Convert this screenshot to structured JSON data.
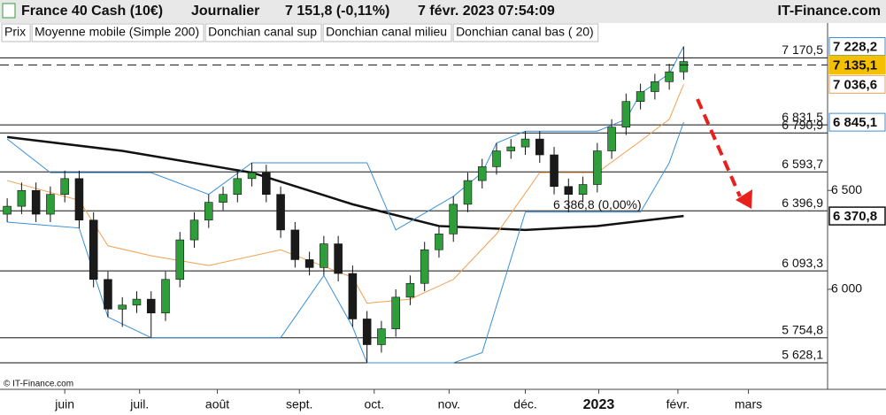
{
  "header": {
    "title": "France 40 Cash (10€)",
    "period": "Journalier",
    "price": "7 151,8 (-0,11%)",
    "datetime": "7 févr. 2023 07:54:09",
    "site": "IT-Finance.com"
  },
  "chart_data": {
    "type": "candlestick",
    "price_name": "Prix",
    "open": [
      6380,
      6420,
      6500,
      6380,
      6480,
      6560,
      6350,
      6050,
      5900,
      5920,
      5950,
      5880,
      6050,
      6250,
      6350,
      6440,
      6480,
      6560,
      6590,
      6480,
      6300,
      6150,
      6110,
      6230,
      6080,
      5850,
      5720,
      5800,
      5960,
      6030,
      6200,
      6280,
      6430,
      6550,
      6620,
      6700,
      6720,
      6760,
      6680,
      6520,
      6480,
      6530,
      6700,
      6820,
      6950,
      7000,
      7050,
      7100
    ],
    "high": [
      6460,
      6540,
      6540,
      6520,
      6600,
      6600,
      6390,
      6090,
      5960,
      5990,
      5990,
      6090,
      6290,
      6390,
      6480,
      6520,
      6600,
      6640,
      6630,
      6520,
      6340,
      6190,
      6270,
      6270,
      6120,
      5890,
      5840,
      6000,
      6070,
      6240,
      6320,
      6470,
      6590,
      6660,
      6740,
      6760,
      6800,
      6800,
      6720,
      6560,
      6570,
      6740,
      6860,
      6990,
      7040,
      7090,
      7140,
      7228.2
    ],
    "low": [
      6340,
      6380,
      6340,
      6340,
      6440,
      6310,
      6010,
      5860,
      5810,
      5880,
      5755,
      5840,
      6010,
      6210,
      6310,
      6400,
      6440,
      6520,
      6440,
      6260,
      6110,
      6070,
      6070,
      6040,
      5810,
      5628,
      5680,
      5760,
      5920,
      5990,
      6160,
      6240,
      6390,
      6510,
      6580,
      6660,
      6680,
      6640,
      6480,
      6390,
      6440,
      6490,
      6660,
      6780,
      6910,
      6960,
      7010,
      7060
    ],
    "close": [
      6420,
      6500,
      6380,
      6480,
      6560,
      6350,
      6050,
      5900,
      5920,
      5950,
      5880,
      6050,
      6250,
      6350,
      6440,
      6480,
      6560,
      6590,
      6480,
      6300,
      6150,
      6110,
      6230,
      6080,
      5850,
      5720,
      5800,
      5960,
      6030,
      6200,
      6280,
      6430,
      6550,
      6620,
      6700,
      6720,
      6760,
      6680,
      6520,
      6480,
      6530,
      6700,
      6820,
      6950,
      7000,
      7050,
      7100,
      7151.8
    ],
    "up_color": "#2e9e3a",
    "down_color": "#1a1a1a",
    "series": [
      {
        "name": "Moyenne mobile (Simple 200)",
        "color": "#111111",
        "width": 2.5,
        "x": [
          0,
          8,
          17,
          24,
          30,
          36,
          41,
          47
        ],
        "values": [
          6770,
          6700,
          6590,
          6430,
          6320,
          6300,
          6320,
          6370.8
        ]
      },
      {
        "name": "Donchian canal sup",
        "color": "#3a8fd6",
        "width": 1,
        "x": [
          0,
          3,
          10,
          14,
          17,
          21,
          25,
          27,
          31,
          33,
          34,
          36,
          41,
          43,
          44,
          45,
          46,
          47
        ],
        "values": [
          6760,
          6590,
          6590,
          6480,
          6640,
          6640,
          6640,
          6300,
          6470,
          6590,
          6740,
          6800,
          6800,
          6860,
          6990,
          7040,
          7090,
          7228.2
        ]
      },
      {
        "name": "Donchian canal milieu",
        "color": "#f0a050",
        "width": 1,
        "x": [
          0,
          5,
          7,
          10,
          14,
          19,
          24,
          25,
          28,
          31,
          34,
          37,
          41,
          44,
          46,
          47
        ],
        "values": [
          6550,
          6450,
          6220,
          6170,
          6120,
          6200,
          6060,
          5930,
          5950,
          6050,
          6280,
          6590,
          6590,
          6750,
          6860,
          7036.6
        ]
      },
      {
        "name": "Donchian canal bas ( 20)",
        "color": "#3a8fd6",
        "width": 1,
        "x": [
          0,
          5,
          7,
          10,
          14,
          19,
          22,
          24,
          25,
          31,
          33,
          36,
          39,
          41,
          44,
          46,
          47
        ],
        "values": [
          6340,
          6310,
          5860,
          5755,
          5755,
          5755,
          6070,
          5810,
          5628,
          5628,
          5680,
          6390,
          6390,
          6390,
          6390,
          6640,
          6845.1
        ]
      }
    ],
    "xlim": [
      -0.5,
      57
    ],
    "xticks": [
      {
        "value": 4,
        "label": "juin"
      },
      {
        "value": 9.2,
        "label": "juil."
      },
      {
        "value": 14.6,
        "label": "août"
      },
      {
        "value": 20.3,
        "label": "sept."
      },
      {
        "value": 25.5,
        "label": "oct."
      },
      {
        "value": 30.7,
        "label": "nov."
      },
      {
        "value": 36,
        "label": "déc."
      },
      {
        "value": 41.1,
        "label": "2023"
      },
      {
        "value": 46.6,
        "label": "févr."
      },
      {
        "value": 51.5,
        "label": "mars"
      }
    ],
    "ylim": [
      5494,
      7329
    ],
    "yticks": [
      {
        "value": 6000,
        "label": "6 000"
      },
      {
        "value": 6500,
        "label": "6 500"
      }
    ],
    "levels": [
      {
        "value": 7170.5,
        "label": "7 170,5"
      },
      {
        "value": 6831.5,
        "label": "6 831,5"
      },
      {
        "value": 6790.9,
        "label": "6 790,9"
      },
      {
        "value": 6593.7,
        "label": "6 593,7"
      },
      {
        "value": 6396.9,
        "label": "6 396,9"
      },
      {
        "value": 6093.3,
        "label": "6 093,3"
      },
      {
        "value": 5754.8,
        "label": "5 754,8"
      },
      {
        "value": 5628.1,
        "label": "5 628,1"
      }
    ],
    "markers": [
      {
        "value": 7228.2,
        "label": "7 228,2",
        "color": "#3a8fd6"
      },
      {
        "value": 7135.1,
        "label": "7 135,1",
        "color": "#f5c000"
      },
      {
        "value": 7036.6,
        "label": "7 036,6",
        "color": "#f0a050"
      },
      {
        "value": 6845.1,
        "label": "6 845,1",
        "color": "#3a8fd6"
      },
      {
        "value": 6370.8,
        "label": "6 370,8",
        "color": "#111111"
      }
    ],
    "annotation": {
      "value": 6386.8,
      "label": "6 386,8 (0,00%)"
    },
    "footer": "© IT-Finance.com"
  }
}
